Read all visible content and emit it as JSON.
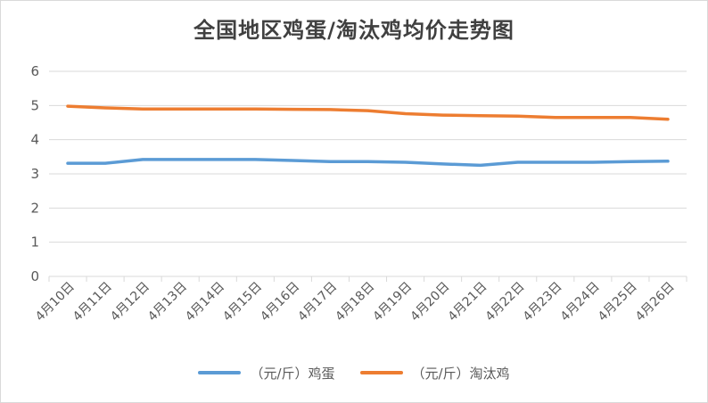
{
  "chart_data": {
    "type": "line",
    "title": "全国地区鸡蛋/淘汰鸡均价走势图",
    "xlabel": "",
    "ylabel": "",
    "categories": [
      "4月10日",
      "4月11日",
      "4月12日",
      "4月13日",
      "4月14日",
      "4月15日",
      "4月16日",
      "4月17日",
      "4月18日",
      "4月19日",
      "4月20日",
      "4月21日",
      "4月22日",
      "4月23日",
      "4月24日",
      "4月25日",
      "4月26日"
    ],
    "ylim": [
      0,
      6
    ],
    "yticks": [
      "0",
      "1",
      "2",
      "3",
      "4",
      "5",
      "6"
    ],
    "grid": true,
    "legend_position": "bottom",
    "series": [
      {
        "name": "（元/斤）鸡蛋",
        "color": "#5b9bd5",
        "values": [
          3.31,
          3.31,
          3.42,
          3.42,
          3.42,
          3.42,
          3.39,
          3.36,
          3.36,
          3.34,
          3.29,
          3.25,
          3.34,
          3.34,
          3.34,
          3.36,
          3.37
        ]
      },
      {
        "name": "（元/斤）淘汰鸡",
        "color": "#ed7d31",
        "values": [
          4.98,
          4.93,
          4.9,
          4.9,
          4.9,
          4.9,
          4.89,
          4.88,
          4.85,
          4.76,
          4.72,
          4.7,
          4.69,
          4.65,
          4.65,
          4.65,
          4.6
        ]
      }
    ]
  }
}
